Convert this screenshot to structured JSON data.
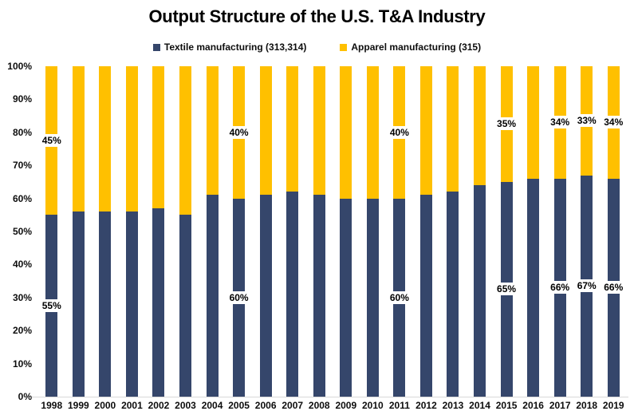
{
  "title": "Output Structure of the U.S. T&A Industry",
  "legend": [
    {
      "label": "Textile manufacturing (313,314)",
      "color": "#35466B"
    },
    {
      "label": "Apparel manufacturing (315)",
      "color": "#FFC000"
    }
  ],
  "colors": {
    "textile": "#35466B",
    "apparel": "#FFC000",
    "axis_line": "#d9d9d9",
    "text": "#000000"
  },
  "chart_data": {
    "type": "bar",
    "stacked": true,
    "title": "Output Structure of the U.S. T&A Industry",
    "categories": [
      "1998",
      "1999",
      "2000",
      "2001",
      "2002",
      "2003",
      "2004",
      "2005",
      "2006",
      "2007",
      "2008",
      "2009",
      "2010",
      "2011",
      "2012",
      "2013",
      "2014",
      "2015",
      "2016",
      "2017",
      "2018",
      "2019"
    ],
    "series": [
      {
        "name": "Textile manufacturing (313,314)",
        "color": "#35466B",
        "values": [
          55,
          56,
          56,
          56,
          57,
          55,
          61,
          60,
          61,
          62,
          61,
          60,
          60,
          60,
          61,
          62,
          64,
          65,
          66,
          66,
          67,
          66
        ]
      },
      {
        "name": "Apparel manufacturing (315)",
        "color": "#FFC000",
        "values": [
          45,
          44,
          44,
          44,
          43,
          45,
          39,
          40,
          39,
          38,
          39,
          40,
          40,
          40,
          39,
          38,
          36,
          35,
          34,
          34,
          33,
          34
        ]
      }
    ],
    "unit": "%",
    "ylim": [
      0,
      100
    ],
    "y_ticks": [
      "0%",
      "10%",
      "20%",
      "30%",
      "40%",
      "50%",
      "60%",
      "70%",
      "80%",
      "90%",
      "100%"
    ],
    "labeled_years": [
      "1998",
      "2005",
      "2011",
      "2015",
      "2017",
      "2018",
      "2019"
    ],
    "grid": false,
    "legend_position": "top"
  }
}
